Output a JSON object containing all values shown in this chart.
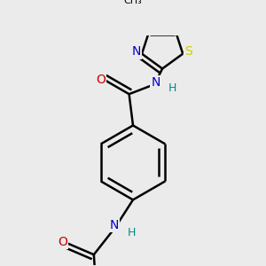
{
  "background_color": "#ebebeb",
  "atom_colors": {
    "C": "#000000",
    "N": "#0000cc",
    "O": "#cc0000",
    "S": "#cccc00",
    "H": "#008888"
  },
  "bond_color": "#000000",
  "bond_width": 1.8,
  "font_size_atoms": 10,
  "bg": "#ebebeb"
}
